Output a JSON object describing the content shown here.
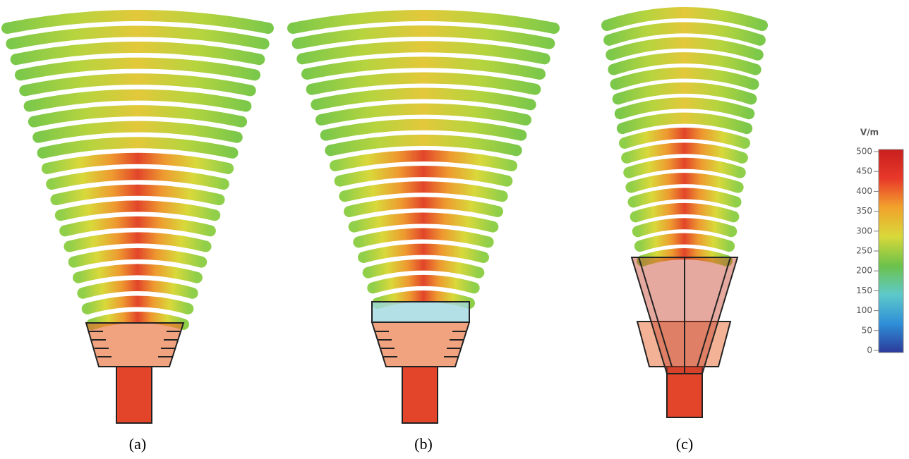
{
  "panels": [
    {
      "label": "(a)"
    },
    {
      "label": "(b)"
    },
    {
      "label": "(c)"
    }
  ],
  "colorbar": {
    "unit": "V/m",
    "lim": [
      0,
      500
    ],
    "ticks": [
      0,
      50,
      100,
      150,
      200,
      250,
      300,
      350,
      400,
      450,
      500
    ],
    "colors": [
      "#2b3a9a",
      "#2f8fd8",
      "#5ec9c9",
      "#6cc24a",
      "#d8d83a",
      "#f2a32c",
      "#e8382a",
      "#c8201e"
    ]
  }
}
